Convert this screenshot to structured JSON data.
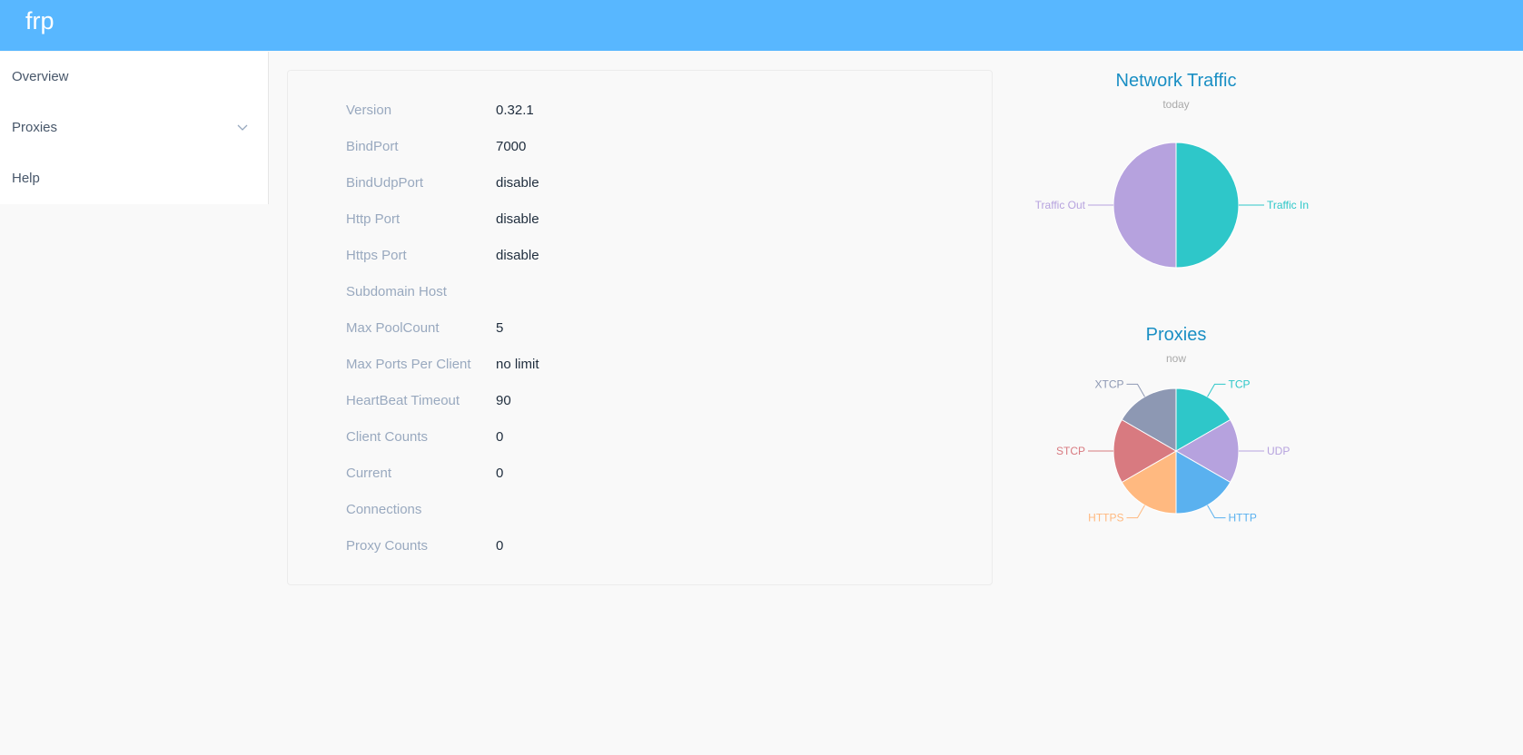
{
  "app": {
    "brand": "frp"
  },
  "sidebar": {
    "items": [
      {
        "label": "Overview"
      },
      {
        "label": "Proxies"
      },
      {
        "label": "Help"
      }
    ]
  },
  "server_info": [
    {
      "label": "Version",
      "value": "0.32.1"
    },
    {
      "label": "BindPort",
      "value": "7000"
    },
    {
      "label": "BindUdpPort",
      "value": "disable"
    },
    {
      "label": "Http Port",
      "value": "disable"
    },
    {
      "label": "Https Port",
      "value": "disable"
    },
    {
      "label": "Subdomain Host",
      "value": ""
    },
    {
      "label": "Max PoolCount",
      "value": "5"
    },
    {
      "label": "Max Ports Per Client",
      "value": "no limit"
    },
    {
      "label": "HeartBeat Timeout",
      "value": "90"
    },
    {
      "label": "Client Counts",
      "value": "0"
    },
    {
      "label": "Current",
      "value": "0"
    },
    {
      "label": "Connections",
      "value": ""
    },
    {
      "label": "Proxy Counts",
      "value": "0"
    }
  ],
  "chart_data": [
    {
      "type": "pie",
      "title": "Network Traffic",
      "subtitle": "today",
      "categories": [
        "Traffic In",
        "Traffic Out"
      ],
      "values": [
        1,
        1
      ],
      "colors": [
        "#2ec7c9",
        "#b6a2de"
      ]
    },
    {
      "type": "pie",
      "title": "Proxies",
      "subtitle": "now",
      "categories": [
        "TCP",
        "UDP",
        "HTTP",
        "HTTPS",
        "STCP",
        "XTCP"
      ],
      "values": [
        1,
        1,
        1,
        1,
        1,
        1
      ],
      "colors": [
        "#2ec7c9",
        "#b6a2de",
        "#5ab1ef",
        "#ffb980",
        "#d87a80",
        "#8d98b3"
      ]
    }
  ]
}
